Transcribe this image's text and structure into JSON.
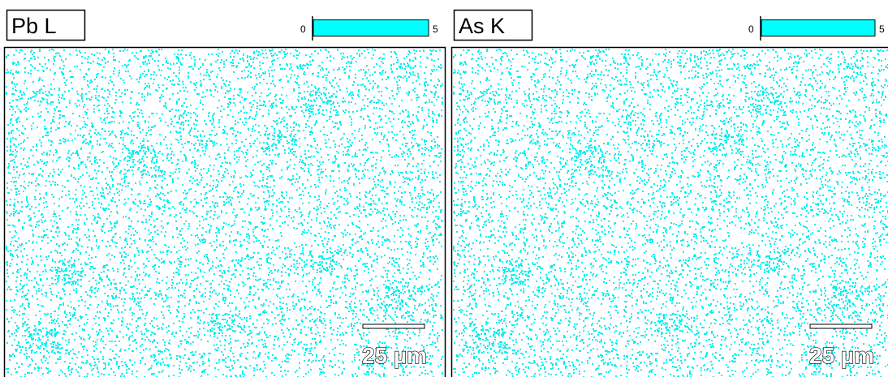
{
  "panels": [
    {
      "label": "Pb L",
      "scale_min": 0,
      "scale_max": 5,
      "scale_bar": "25 µm"
    },
    {
      "label": "As K",
      "scale_min": 0,
      "scale_max": 5,
      "scale_bar": "25 µm"
    }
  ]
}
